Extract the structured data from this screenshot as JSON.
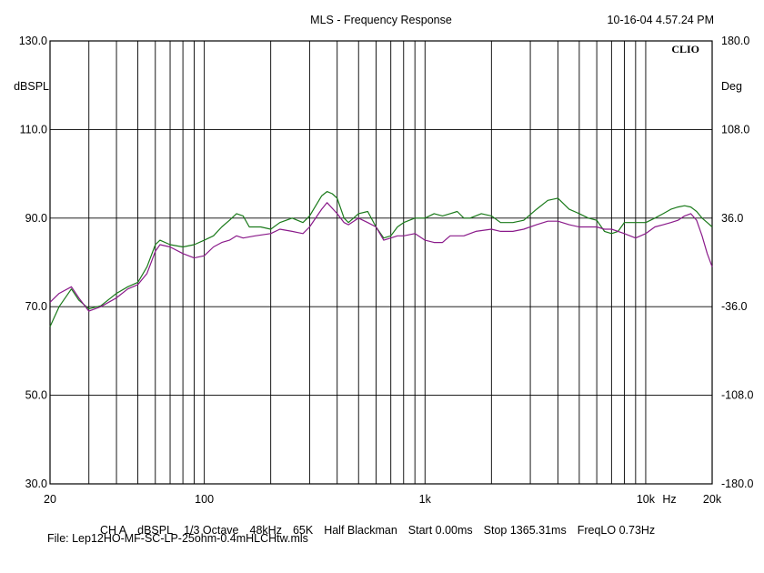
{
  "header": {
    "title": "MLS - Frequency Response",
    "timestamp": "10-16-04 4.57.24 PM",
    "logo": "CLIO"
  },
  "chart_data": {
    "type": "line",
    "title": "MLS - Frequency Response",
    "x_scale": "log",
    "xlim": [
      20,
      20000
    ],
    "ylim": [
      30,
      130
    ],
    "y2lim": [
      -180,
      180
    ],
    "ylabel": "dBSPL",
    "y2label": "Deg",
    "xunit": "Hz",
    "grid": true,
    "y_ticks": [
      "130.0",
      "110.0",
      "90.0",
      "70.0",
      "50.0",
      "30.0"
    ],
    "y2_ticks": [
      "180.0",
      "108.0",
      "36.0",
      "-36.0",
      "-108.0",
      "-180.0"
    ],
    "x_ticks": [
      {
        "value": 20,
        "label": "20"
      },
      {
        "value": 100,
        "label": "100"
      },
      {
        "value": 1000,
        "label": "1k"
      },
      {
        "value": 10000,
        "label": "10k"
      },
      {
        "value": 20000,
        "label": "20k"
      }
    ],
    "series": [
      {
        "color": "#1a7a1a",
        "points": [
          [
            20,
            65.5
          ],
          [
            22,
            70
          ],
          [
            25,
            74
          ],
          [
            27,
            71.5
          ],
          [
            30,
            69.5
          ],
          [
            34,
            70.2
          ],
          [
            40,
            73
          ],
          [
            45,
            74.5
          ],
          [
            50,
            75.5
          ],
          [
            55,
            79
          ],
          [
            60,
            84
          ],
          [
            63,
            85
          ],
          [
            70,
            84
          ],
          [
            80,
            83.5
          ],
          [
            90,
            84
          ],
          [
            100,
            85
          ],
          [
            110,
            86
          ],
          [
            120,
            88
          ],
          [
            130,
            89.5
          ],
          [
            140,
            91
          ],
          [
            150,
            90.5
          ],
          [
            160,
            88
          ],
          [
            180,
            88
          ],
          [
            200,
            87.5
          ],
          [
            220,
            89
          ],
          [
            250,
            90
          ],
          [
            280,
            89
          ],
          [
            300,
            90.5
          ],
          [
            340,
            95
          ],
          [
            360,
            96
          ],
          [
            380,
            95.5
          ],
          [
            400,
            94.5
          ],
          [
            430,
            90
          ],
          [
            450,
            89
          ],
          [
            500,
            91
          ],
          [
            550,
            91.5
          ],
          [
            600,
            88
          ],
          [
            650,
            85.5
          ],
          [
            700,
            86
          ],
          [
            750,
            88
          ],
          [
            800,
            89
          ],
          [
            900,
            90
          ],
          [
            1000,
            90
          ],
          [
            1100,
            91
          ],
          [
            1200,
            90.5
          ],
          [
            1300,
            91
          ],
          [
            1400,
            91.5
          ],
          [
            1500,
            90
          ],
          [
            1600,
            90
          ],
          [
            1800,
            91
          ],
          [
            2000,
            90.5
          ],
          [
            2200,
            89
          ],
          [
            2500,
            89
          ],
          [
            2800,
            89.5
          ],
          [
            3200,
            92
          ],
          [
            3600,
            94
          ],
          [
            4000,
            94.5
          ],
          [
            4500,
            92
          ],
          [
            5000,
            91
          ],
          [
            5500,
            90
          ],
          [
            6000,
            89.5
          ],
          [
            6500,
            87
          ],
          [
            7000,
            86.5
          ],
          [
            7500,
            87
          ],
          [
            8000,
            89
          ],
          [
            9000,
            89
          ],
          [
            10000,
            89
          ],
          [
            11000,
            90
          ],
          [
            12000,
            91
          ],
          [
            13000,
            92
          ],
          [
            14000,
            92.5
          ],
          [
            15000,
            92.8
          ],
          [
            16000,
            92.5
          ],
          [
            17000,
            91.5
          ],
          [
            18000,
            90
          ],
          [
            19000,
            89
          ],
          [
            20000,
            88
          ]
        ]
      },
      {
        "color": "#8a1a8a",
        "points": [
          [
            20,
            71
          ],
          [
            22,
            73
          ],
          [
            25,
            74.5
          ],
          [
            27,
            72
          ],
          [
            30,
            69
          ],
          [
            34,
            70
          ],
          [
            40,
            72
          ],
          [
            45,
            74
          ],
          [
            50,
            75
          ],
          [
            55,
            77.5
          ],
          [
            60,
            82.5
          ],
          [
            63,
            84
          ],
          [
            70,
            83.5
          ],
          [
            80,
            82
          ],
          [
            90,
            81
          ],
          [
            100,
            81.5
          ],
          [
            110,
            83.5
          ],
          [
            120,
            84.5
          ],
          [
            130,
            85
          ],
          [
            140,
            86
          ],
          [
            150,
            85.5
          ],
          [
            170,
            86
          ],
          [
            200,
            86.5
          ],
          [
            220,
            87.5
          ],
          [
            250,
            87
          ],
          [
            280,
            86.5
          ],
          [
            300,
            88
          ],
          [
            340,
            92
          ],
          [
            360,
            93.5
          ],
          [
            400,
            91
          ],
          [
            430,
            89
          ],
          [
            450,
            88.5
          ],
          [
            500,
            90
          ],
          [
            550,
            89
          ],
          [
            600,
            88
          ],
          [
            650,
            85
          ],
          [
            700,
            85.5
          ],
          [
            750,
            86
          ],
          [
            800,
            86
          ],
          [
            900,
            86.5
          ],
          [
            1000,
            85
          ],
          [
            1100,
            84.5
          ],
          [
            1200,
            84.5
          ],
          [
            1300,
            86
          ],
          [
            1500,
            86
          ],
          [
            1700,
            87
          ],
          [
            2000,
            87.5
          ],
          [
            2200,
            87
          ],
          [
            2500,
            87
          ],
          [
            2800,
            87.5
          ],
          [
            3200,
            88.5
          ],
          [
            3600,
            89.3
          ],
          [
            4000,
            89.3
          ],
          [
            4500,
            88.5
          ],
          [
            5000,
            88
          ],
          [
            5500,
            88
          ],
          [
            6000,
            88
          ],
          [
            6500,
            87.5
          ],
          [
            7000,
            87.5
          ],
          [
            7500,
            87
          ],
          [
            8000,
            86.5
          ],
          [
            9000,
            85.5
          ],
          [
            10000,
            86.5
          ],
          [
            11000,
            88
          ],
          [
            12000,
            88.5
          ],
          [
            13000,
            89
          ],
          [
            14000,
            89.5
          ],
          [
            15000,
            90.5
          ],
          [
            16000,
            91
          ],
          [
            17000,
            89.5
          ],
          [
            18000,
            86
          ],
          [
            19000,
            82
          ],
          [
            20000,
            79
          ]
        ]
      }
    ]
  },
  "footer": {
    "params": [
      "CH A",
      "dBSPL",
      "1/3 Octave",
      "48kHz",
      "65K",
      "Half Blackman",
      "Start 0.00ms",
      "Stop 1365.31ms",
      "FreqLO 0.73Hz"
    ],
    "file": "File: Lep12HO-MF-SC-LP-25ohm-0.4mHLCHtw.mls"
  }
}
